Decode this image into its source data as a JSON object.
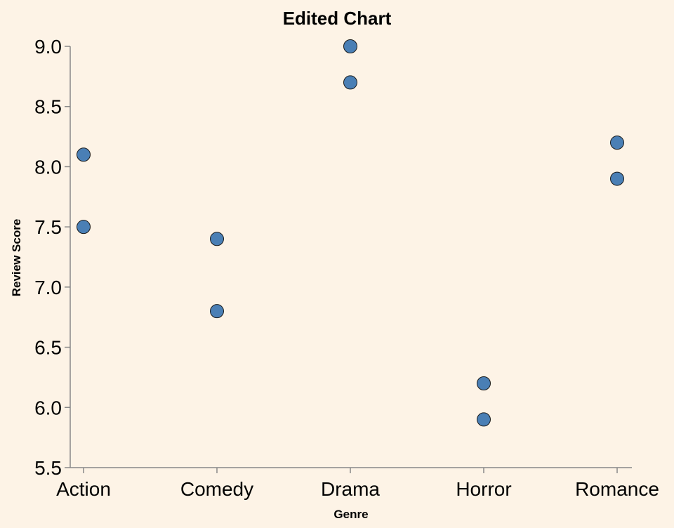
{
  "chart_data": {
    "type": "scatter",
    "title": "Edited Chart",
    "xlabel": "Genre",
    "ylabel": "Review Score",
    "categories": [
      "Action",
      "Comedy",
      "Drama",
      "Horror",
      "Romance"
    ],
    "points": [
      {
        "x": "Action",
        "y": 8.1
      },
      {
        "x": "Action",
        "y": 7.5
      },
      {
        "x": "Comedy",
        "y": 7.4
      },
      {
        "x": "Comedy",
        "y": 6.8
      },
      {
        "x": "Drama",
        "y": 9.0
      },
      {
        "x": "Drama",
        "y": 8.7
      },
      {
        "x": "Horror",
        "y": 6.2
      },
      {
        "x": "Horror",
        "y": 5.9
      },
      {
        "x": "Romance",
        "y": 8.2
      },
      {
        "x": "Romance",
        "y": 7.9
      }
    ],
    "ylim": [
      5.5,
      9.0
    ],
    "yticks": [
      "5.5",
      "6.0",
      "6.5",
      "7.0",
      "7.5",
      "8.0",
      "8.5",
      "9.0"
    ],
    "grid": false,
    "point_color": "#4a7fb5",
    "background_color": "#fdf3e6"
  }
}
